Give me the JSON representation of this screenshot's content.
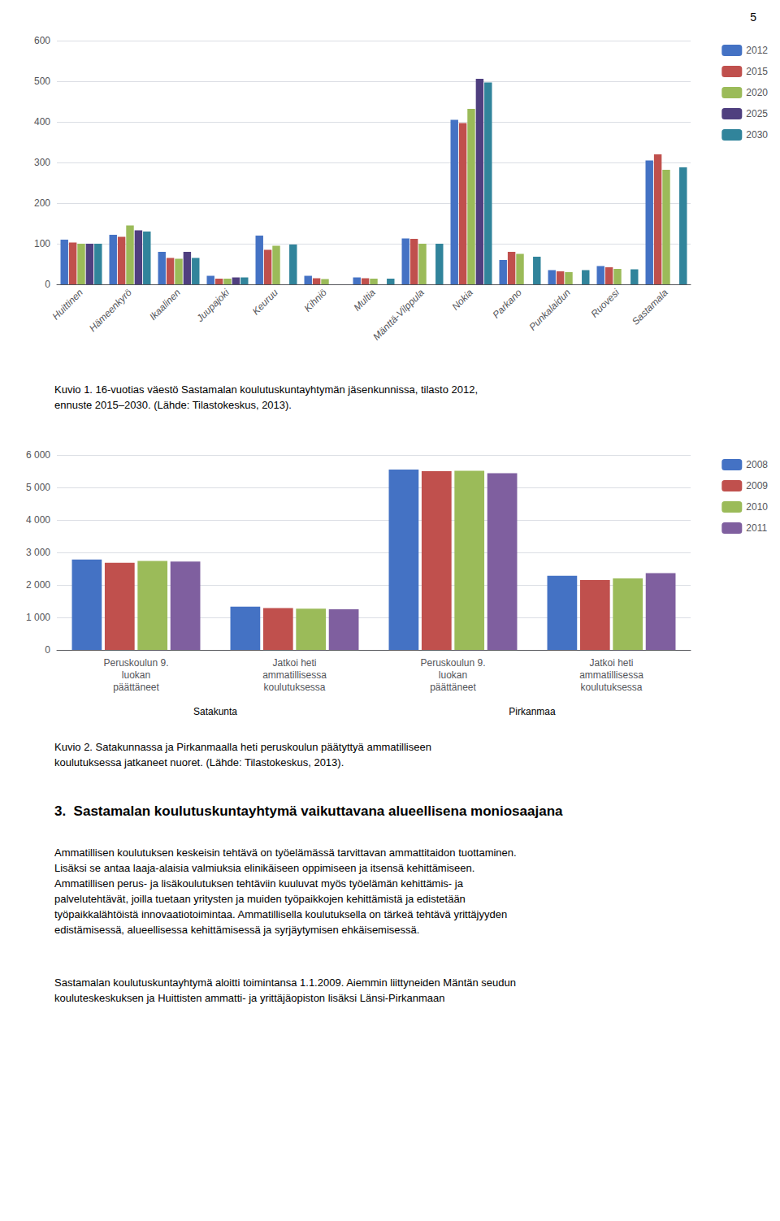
{
  "page_number": "5",
  "chart_data": [
    {
      "type": "bar",
      "categories": [
        "Huittinen",
        "Hämeenkyrö",
        "Ikaalinen",
        "Juupajoki",
        "Keuruu",
        "Kihniö",
        "Multia",
        "Mänttä-Vilppula",
        "Nokia",
        "Parkano",
        "Punkalaidun",
        "Ruovesi",
        "Sastamala"
      ],
      "series": [
        {
          "name": "2012",
          "color": "#4472C4",
          "values": [
            110,
            122,
            80,
            21,
            120,
            21,
            17,
            113,
            405,
            60,
            35,
            45,
            305
          ]
        },
        {
          "name": "2015",
          "color": "#C0504D",
          "values": [
            103,
            117,
            65,
            14,
            85,
            15,
            15,
            112,
            397,
            80,
            32,
            42,
            320
          ]
        },
        {
          "name": "2020",
          "color": "#9BBB59",
          "values": [
            100,
            145,
            63,
            14,
            95,
            13,
            14,
            100,
            432,
            75,
            30,
            38,
            282
          ]
        },
        {
          "name": "2025",
          "color": "#4F3F7F",
          "values": [
            100,
            133,
            80,
            17,
            0,
            0,
            0,
            0,
            506,
            0,
            0,
            0,
            0
          ]
        },
        {
          "name": "2030",
          "color": "#31849B",
          "values": [
            100,
            130,
            65,
            17,
            98,
            0,
            14,
            100,
            497,
            68,
            35,
            37,
            288
          ]
        }
      ],
      "ylim": [
        0,
        600
      ],
      "yticks": [
        0,
        100,
        200,
        300,
        400,
        500,
        600
      ],
      "grid": true,
      "legend": "right",
      "caption": "Kuvio 1. 16-vuotias väestö Sastamalan koulutuskuntayhtymän jäsenkunnissa, tilasto 2012,\nennuste 2015–2030. (Lähde: Tilastokeskus, 2013)."
    },
    {
      "type": "bar",
      "categories": [
        "Peruskoulun 9.\nluokan\npäättäneet",
        "Jatkoi heti\nammatillisessa\nkoulutuksessa",
        "Peruskoulun 9.\nluokan\npäättäneet",
        "Jatkoi heti\nammatillisessa\nkoulutuksessa"
      ],
      "series": [
        {
          "name": "2008",
          "color": "#4472C4",
          "values": [
            2780,
            1330,
            5550,
            2280
          ]
        },
        {
          "name": "2009",
          "color": "#C0504D",
          "values": [
            2680,
            1290,
            5500,
            2150
          ]
        },
        {
          "name": "2010",
          "color": "#9BBB59",
          "values": [
            2740,
            1270,
            5510,
            2200
          ]
        },
        {
          "name": "2011",
          "color": "#7F5F9F",
          "values": [
            2720,
            1250,
            5440,
            2360
          ]
        }
      ],
      "ylim": [
        0,
        6000
      ],
      "yticks": [
        0,
        {
          "value": 1000,
          "label": "1 000"
        },
        {
          "value": 2000,
          "label": "2 000"
        },
        {
          "value": 3000,
          "label": "3 000"
        },
        {
          "value": 4000,
          "label": "4 000"
        },
        {
          "value": 5000,
          "label": "5 000"
        },
        {
          "value": 6000,
          "label": "6 000"
        }
      ],
      "grid": true,
      "legend": "right",
      "annotations": [
        "Satakunta",
        "Pirkanmaa"
      ],
      "caption": "Kuvio 2. Satakunnassa ja Pirkanmaalla heti peruskoulun päätyttyä ammatilliseen\nkoulutuksessa jatkaneet nuoret. (Lähde: Tilastokeskus, 2013)."
    }
  ],
  "heading": "3.  Sastamalan koulutuskuntayhtymä vaikuttavana alueellisena moniosaajana",
  "body": [
    "Ammatillisen koulutuksen keskeisin tehtävä on työelämässä tarvittavan ammattitaidon tuottaminen.\nLisäksi se antaa laaja-alaisia valmiuksia elinikäiseen oppimiseen ja itsensä kehittämiseen.\nAmmatillisen perus- ja lisäkoulutuksen tehtäviin kuuluvat myös työelämän kehittämis- ja\npalvelutehtävät, joilla tuetaan yritysten ja muiden työpaikkojen kehittämistä ja edistetään\ntyöpaikkalähtöistä innovaatiotoimintaa. Ammatillisella koulutuksella on tärkeä tehtävä yrittäjyyden\nedistämisessä, alueellisessa kehittämisessä ja syrjäytymisen ehkäisemisessä.",
    "Sastamalan koulutuskuntayhtymä aloitti toimintansa 1.1.2009. Aiemmin liittyneiden Mäntän seudun\nkouluteskeskuksen ja Huittisten ammatti- ja yrittäjäopiston lisäksi Länsi-Pirkanmaan"
  ]
}
